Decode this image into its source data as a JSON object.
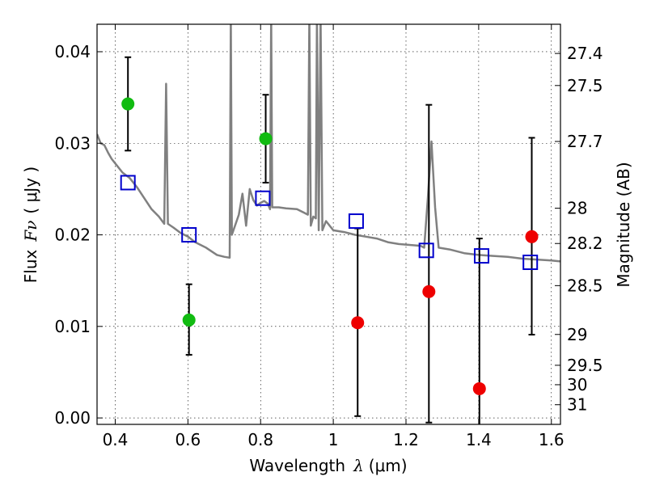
{
  "chart_data": {
    "type": "scatter",
    "xlabel_text": "Wavelength",
    "xlabel_symbol": "λ",
    "xlabel_unit": "(μm)",
    "ylabel_text": "Flux",
    "ylabel_symbol": "Fν",
    "ylabel_unit": "( μJy )",
    "y2label": "Magnitude (AB)",
    "xlim": [
      0.35,
      1.625
    ],
    "ylim": [
      -0.0007,
      0.043
    ],
    "grid": true,
    "x_ticks": [
      {
        "value": 0.4,
        "label": "0.4"
      },
      {
        "value": 0.6,
        "label": "0.6"
      },
      {
        "value": 0.8,
        "label": "0.8"
      },
      {
        "value": 1.0,
        "label": "1"
      },
      {
        "value": 1.2,
        "label": "1.2"
      },
      {
        "value": 1.4,
        "label": "1.4"
      },
      {
        "value": 1.6,
        "label": "1.6"
      }
    ],
    "y_ticks": [
      {
        "value": 0.0,
        "label": "0.00"
      },
      {
        "value": 0.01,
        "label": "0.01"
      },
      {
        "value": 0.02,
        "label": "0.02"
      },
      {
        "value": 0.03,
        "label": "0.03"
      },
      {
        "value": 0.04,
        "label": "0.04"
      }
    ],
    "mag_ticks": [
      {
        "value": 27.4,
        "label": "27.4"
      },
      {
        "value": 27.5,
        "label": "27.5"
      },
      {
        "value": 27.7,
        "label": "27.7"
      },
      {
        "value": 28.0,
        "label": "28"
      },
      {
        "value": 28.2,
        "label": "28.2"
      },
      {
        "value": 28.5,
        "label": "28.5"
      },
      {
        "value": 29.0,
        "label": "29"
      },
      {
        "value": 29.5,
        "label": "29.5"
      },
      {
        "value": 30.0,
        "label": "30"
      },
      {
        "value": 31.0,
        "label": "31"
      }
    ],
    "colors": {
      "model": "#808080",
      "model_points": "#0000cc",
      "green": "#11bb11",
      "red": "#ee0000",
      "errorbar": "#000000"
    },
    "model_spectrum": [
      [
        0.35,
        0.031
      ],
      [
        0.36,
        0.03
      ],
      [
        0.37,
        0.0298
      ],
      [
        0.38,
        0.029
      ],
      [
        0.39,
        0.0283
      ],
      [
        0.4,
        0.0278
      ],
      [
        0.42,
        0.0268
      ],
      [
        0.44,
        0.0262
      ],
      [
        0.46,
        0.0252
      ],
      [
        0.48,
        0.024
      ],
      [
        0.5,
        0.0228
      ],
      [
        0.52,
        0.022
      ],
      [
        0.535,
        0.0212
      ],
      [
        0.54,
        0.0365
      ],
      [
        0.545,
        0.0212
      ],
      [
        0.56,
        0.0208
      ],
      [
        0.58,
        0.0202
      ],
      [
        0.6,
        0.0198
      ],
      [
        0.62,
        0.0192
      ],
      [
        0.65,
        0.0186
      ],
      [
        0.68,
        0.0178
      ],
      [
        0.7,
        0.0176
      ],
      [
        0.715,
        0.0175
      ],
      [
        0.718,
        0.044
      ],
      [
        0.721,
        0.02
      ],
      [
        0.74,
        0.0222
      ],
      [
        0.75,
        0.0245
      ],
      [
        0.76,
        0.021
      ],
      [
        0.77,
        0.025
      ],
      [
        0.78,
        0.0238
      ],
      [
        0.79,
        0.0232
      ],
      [
        0.8,
        0.0235
      ],
      [
        0.81,
        0.0237
      ],
      [
        0.82,
        0.0234
      ],
      [
        0.826,
        0.0228
      ],
      [
        0.829,
        0.044
      ],
      [
        0.832,
        0.023
      ],
      [
        0.85,
        0.023
      ],
      [
        0.87,
        0.0229
      ],
      [
        0.9,
        0.0228
      ],
      [
        0.92,
        0.0224
      ],
      [
        0.93,
        0.0222
      ],
      [
        0.934,
        0.044
      ],
      [
        0.938,
        0.021
      ],
      [
        0.945,
        0.022
      ],
      [
        0.952,
        0.0218
      ],
      [
        0.955,
        0.044
      ],
      [
        0.96,
        0.0205
      ],
      [
        0.965,
        0.044
      ],
      [
        0.97,
        0.0205
      ],
      [
        0.98,
        0.0215
      ],
      [
        1.0,
        0.0205
      ],
      [
        1.03,
        0.0203
      ],
      [
        1.06,
        0.02
      ],
      [
        1.09,
        0.0198
      ],
      [
        1.12,
        0.0196
      ],
      [
        1.15,
        0.0192
      ],
      [
        1.18,
        0.019
      ],
      [
        1.21,
        0.0189
      ],
      [
        1.24,
        0.0188
      ],
      [
        1.25,
        0.0186
      ],
      [
        1.26,
        0.024
      ],
      [
        1.27,
        0.0302
      ],
      [
        1.28,
        0.023
      ],
      [
        1.29,
        0.0186
      ],
      [
        1.32,
        0.0184
      ],
      [
        1.36,
        0.018
      ],
      [
        1.4,
        0.0178
      ],
      [
        1.44,
        0.0177
      ],
      [
        1.48,
        0.0176
      ],
      [
        1.52,
        0.0174
      ],
      [
        1.56,
        0.0173
      ],
      [
        1.6,
        0.0172
      ],
      [
        1.625,
        0.0171
      ]
    ],
    "model_points": [
      {
        "x": 0.435,
        "y": 0.0257
      },
      {
        "x": 0.603,
        "y": 0.02
      },
      {
        "x": 0.806,
        "y": 0.024
      },
      {
        "x": 1.063,
        "y": 0.0215
      },
      {
        "x": 1.256,
        "y": 0.0183
      },
      {
        "x": 1.408,
        "y": 0.0177
      },
      {
        "x": 1.542,
        "y": 0.017
      }
    ],
    "observed_points": [
      {
        "x": 0.435,
        "y": 0.0343,
        "err_lo": 0.0051,
        "err_hi": 0.0051,
        "color": "green"
      },
      {
        "x": 0.603,
        "y": 0.0107,
        "err_lo": 0.0038,
        "err_hi": 0.0039,
        "color": "green"
      },
      {
        "x": 0.814,
        "y": 0.0305,
        "err_lo": 0.0048,
        "err_hi": 0.0048,
        "color": "green"
      },
      {
        "x": 1.067,
        "y": 0.0104,
        "err_lo": 0.0102,
        "err_hi": 0.0103,
        "color": "red"
      },
      {
        "x": 1.263,
        "y": 0.0138,
        "err_lo": 0.0143,
        "err_hi": 0.0204,
        "color": "red"
      },
      {
        "x": 1.402,
        "y": 0.0032,
        "err_lo": 0.0046,
        "err_hi": 0.0164,
        "color": "red"
      },
      {
        "x": 1.546,
        "y": 0.0198,
        "err_lo": 0.0107,
        "err_hi": 0.0108,
        "color": "red"
      }
    ]
  }
}
